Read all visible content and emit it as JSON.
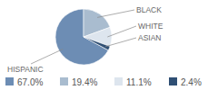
{
  "chart_data": {
    "type": "pie",
    "categories": [
      "HISPANIC",
      "BLACK",
      "WHITE",
      "ASIAN"
    ],
    "values": [
      67.0,
      19.4,
      11.1,
      2.4
    ],
    "value_labels": [
      "67.0%",
      "19.4%",
      "11.1%",
      "2.4%"
    ],
    "colors": [
      "#6d8db4",
      "#a9bccf",
      "#dde5ee",
      "#2f4f74"
    ],
    "legend": "bottom"
  }
}
